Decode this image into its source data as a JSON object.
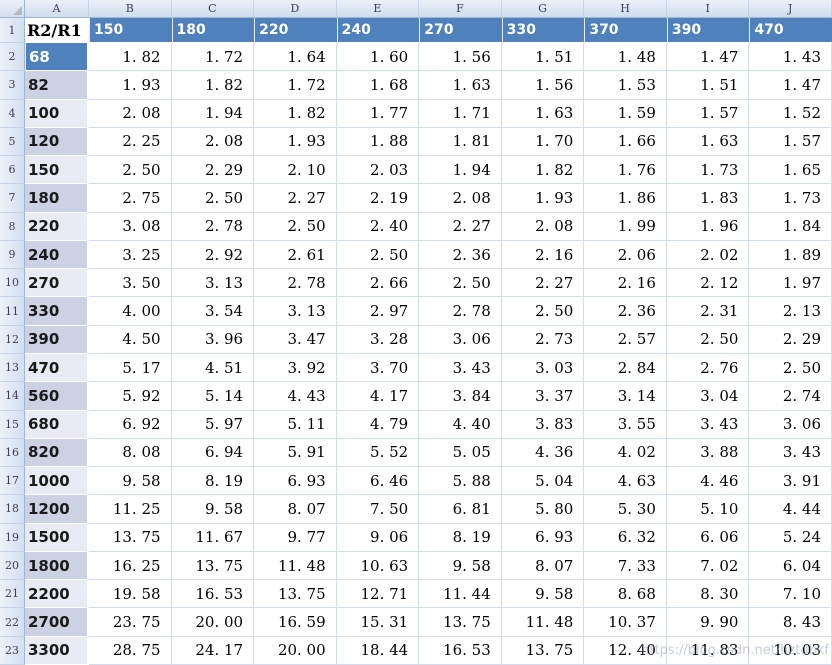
{
  "sheet": {
    "column_letters": [
      "A",
      "B",
      "C",
      "D",
      "E",
      "F",
      "G",
      "H",
      "I",
      "J"
    ],
    "row_numbers": [
      "1",
      "2",
      "3",
      "4",
      "5",
      "6",
      "7",
      "8",
      "9",
      "10",
      "11",
      "12",
      "13",
      "14",
      "15",
      "16",
      "17",
      "18",
      "19",
      "20",
      "21",
      "22",
      "23"
    ],
    "header_row": {
      "corner_label": "R2/R1",
      "values": [
        "150",
        "180",
        "220",
        "240",
        "270",
        "330",
        "370",
        "390",
        "470"
      ]
    },
    "data_rows": [
      {
        "label": "68",
        "values": [
          "1. 82",
          "1. 72",
          "1. 64",
          "1. 60",
          "1. 56",
          "1. 51",
          "1. 48",
          "1. 47",
          "1. 43"
        ]
      },
      {
        "label": "82",
        "values": [
          "1. 93",
          "1. 82",
          "1. 72",
          "1. 68",
          "1. 63",
          "1. 56",
          "1. 53",
          "1. 51",
          "1. 47"
        ]
      },
      {
        "label": "100",
        "values": [
          "2. 08",
          "1. 94",
          "1. 82",
          "1. 77",
          "1. 71",
          "1. 63",
          "1. 59",
          "1. 57",
          "1. 52"
        ]
      },
      {
        "label": "120",
        "values": [
          "2. 25",
          "2. 08",
          "1. 93",
          "1. 88",
          "1. 81",
          "1. 70",
          "1. 66",
          "1. 63",
          "1. 57"
        ]
      },
      {
        "label": "150",
        "values": [
          "2. 50",
          "2. 29",
          "2. 10",
          "2. 03",
          "1. 94",
          "1. 82",
          "1. 76",
          "1. 73",
          "1. 65"
        ]
      },
      {
        "label": "180",
        "values": [
          "2. 75",
          "2. 50",
          "2. 27",
          "2. 19",
          "2. 08",
          "1. 93",
          "1. 86",
          "1. 83",
          "1. 73"
        ]
      },
      {
        "label": "220",
        "values": [
          "3. 08",
          "2. 78",
          "2. 50",
          "2. 40",
          "2. 27",
          "2. 08",
          "1. 99",
          "1. 96",
          "1. 84"
        ]
      },
      {
        "label": "240",
        "values": [
          "3. 25",
          "2. 92",
          "2. 61",
          "2. 50",
          "2. 36",
          "2. 16",
          "2. 06",
          "2. 02",
          "1. 89"
        ]
      },
      {
        "label": "270",
        "values": [
          "3. 50",
          "3. 13",
          "2. 78",
          "2. 66",
          "2. 50",
          "2. 27",
          "2. 16",
          "2. 12",
          "1. 97"
        ]
      },
      {
        "label": "330",
        "values": [
          "4. 00",
          "3. 54",
          "3. 13",
          "2. 97",
          "2. 78",
          "2. 50",
          "2. 36",
          "2. 31",
          "2. 13"
        ]
      },
      {
        "label": "390",
        "values": [
          "4. 50",
          "3. 96",
          "3. 47",
          "3. 28",
          "3. 06",
          "2. 73",
          "2. 57",
          "2. 50",
          "2. 29"
        ]
      },
      {
        "label": "470",
        "values": [
          "5. 17",
          "4. 51",
          "3. 92",
          "3. 70",
          "3. 43",
          "3. 03",
          "2. 84",
          "2. 76",
          "2. 50"
        ]
      },
      {
        "label": "560",
        "values": [
          "5. 92",
          "5. 14",
          "4. 43",
          "4. 17",
          "3. 84",
          "3. 37",
          "3. 14",
          "3. 04",
          "2. 74"
        ]
      },
      {
        "label": "680",
        "values": [
          "6. 92",
          "5. 97",
          "5. 11",
          "4. 79",
          "4. 40",
          "3. 83",
          "3. 55",
          "3. 43",
          "3. 06"
        ]
      },
      {
        "label": "820",
        "values": [
          "8. 08",
          "6. 94",
          "5. 91",
          "5. 52",
          "5. 05",
          "4. 36",
          "4. 02",
          "3. 88",
          "3. 43"
        ]
      },
      {
        "label": "1000",
        "values": [
          "9. 58",
          "8. 19",
          "6. 93",
          "6. 46",
          "5. 88",
          "5. 04",
          "4. 63",
          "4. 46",
          "3. 91"
        ]
      },
      {
        "label": "1200",
        "values": [
          "11. 25",
          "9. 58",
          "8. 07",
          "7. 50",
          "6. 81",
          "5. 80",
          "5. 30",
          "5. 10",
          "4. 44"
        ]
      },
      {
        "label": "1500",
        "values": [
          "13. 75",
          "11. 67",
          "9. 77",
          "9. 06",
          "8. 19",
          "6. 93",
          "6. 32",
          "6. 06",
          "5. 24"
        ]
      },
      {
        "label": "1800",
        "values": [
          "16. 25",
          "13. 75",
          "11. 48",
          "10. 63",
          "9. 58",
          "8. 07",
          "7. 33",
          "7. 02",
          "6. 04"
        ]
      },
      {
        "label": "2200",
        "values": [
          "19. 58",
          "16. 53",
          "13. 75",
          "12. 71",
          "11. 44",
          "9. 58",
          "8. 68",
          "8. 30",
          "7. 10"
        ]
      },
      {
        "label": "2700",
        "values": [
          "23. 75",
          "20. 00",
          "16. 59",
          "15. 31",
          "13. 75",
          "11. 48",
          "10. 37",
          "9. 90",
          "8. 43"
        ]
      },
      {
        "label": "3300",
        "values": [
          "28. 75",
          "24. 17",
          "20. 00",
          "18. 44",
          "16. 53",
          "13. 75",
          "12. 40",
          "11. 83",
          "10. 03"
        ]
      }
    ],
    "selected_row_label": "68",
    "colors": {
      "accent_blue": "#4F81BD",
      "band_dark": "#CCD1E4",
      "band_light": "#E9EBF4",
      "gridline": "#D3DCEA"
    },
    "watermark": "https://blog.csdn.net/hztdbkf"
  }
}
